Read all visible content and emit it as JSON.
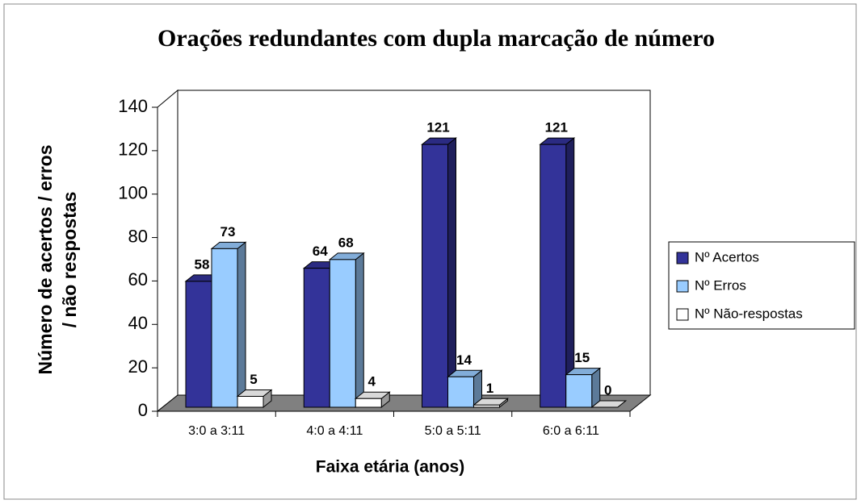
{
  "chart_data": {
    "type": "bar3d",
    "title": "Orações redundantes com dupla marcação de número",
    "x_label": "Faixa etária (anos)",
    "y_label": [
      "Número de acertos / erros",
      "/ não respostas"
    ],
    "categories": [
      "3:0 a 3:11",
      "4:0 a 4:11",
      "5:0 a 5:11",
      "6:0 a 6:11"
    ],
    "series": [
      {
        "name": "Nº Acertos",
        "color": "#333399",
        "values": [
          58,
          64,
          121,
          121
        ]
      },
      {
        "name": "Nº Erros",
        "color": "#99ccff",
        "values": [
          73,
          68,
          14,
          15
        ]
      },
      {
        "name": "Nº Não-respostas",
        "color": "#ffffff",
        "values": [
          5,
          4,
          1,
          0
        ]
      }
    ],
    "ylim": [
      0,
      140
    ],
    "yticks": [
      0,
      20,
      40,
      60,
      80,
      100,
      120,
      140
    ],
    "legend": "right"
  }
}
